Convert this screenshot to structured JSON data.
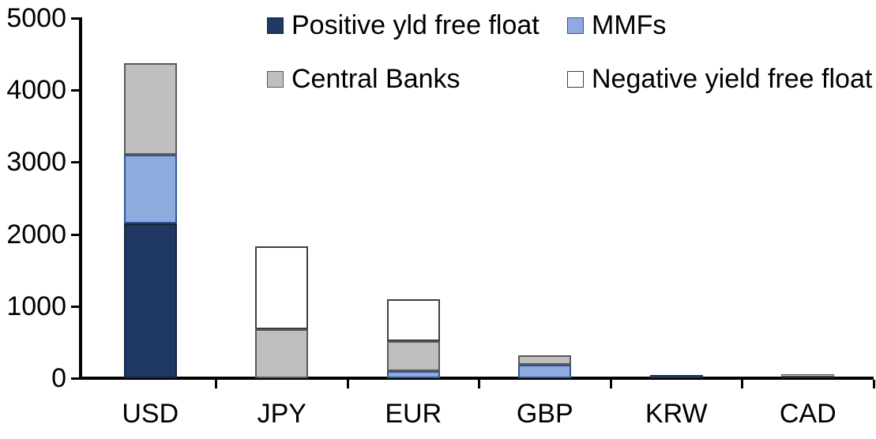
{
  "chart_data": {
    "type": "bar",
    "stacked": true,
    "title": "",
    "categories": [
      "USD",
      "JPY",
      "EUR",
      "GBP",
      "KRW",
      "CAD"
    ],
    "series": [
      {
        "name": "Positive yld free float",
        "color": "#1F3864",
        "border_color": "#16253C",
        "values": [
          2150,
          0,
          0,
          0,
          40,
          25
        ]
      },
      {
        "name": "MMFs",
        "color": "#8FAADC",
        "border_color": "#2F5597",
        "values": [
          950,
          0,
          100,
          190,
          0,
          0
        ]
      },
      {
        "name": "Central Banks",
        "color": "#BFBFBF",
        "border_color": "#595959",
        "values": [
          1280,
          680,
          420,
          130,
          0,
          35
        ]
      },
      {
        "name": "Negative yield free float",
        "color": "#FFFFFF",
        "border_color": "#3F3F3F",
        "values": [
          0,
          1150,
          580,
          0,
          0,
          0
        ]
      }
    ],
    "totals": [
      4380,
      1830,
      1100,
      320,
      40,
      60
    ],
    "ylim": [
      0,
      5000
    ],
    "yticks": [
      "0",
      "1000",
      "2000",
      "3000",
      "4000",
      "5000"
    ],
    "ytick_values": [
      0,
      1000,
      2000,
      3000,
      4000,
      5000
    ],
    "xlabel": "",
    "ylabel": "",
    "grid": false,
    "legend_position": "top",
    "axis_color": "#000000",
    "text_color": "#000000",
    "background_color": "#FFFFFF"
  }
}
